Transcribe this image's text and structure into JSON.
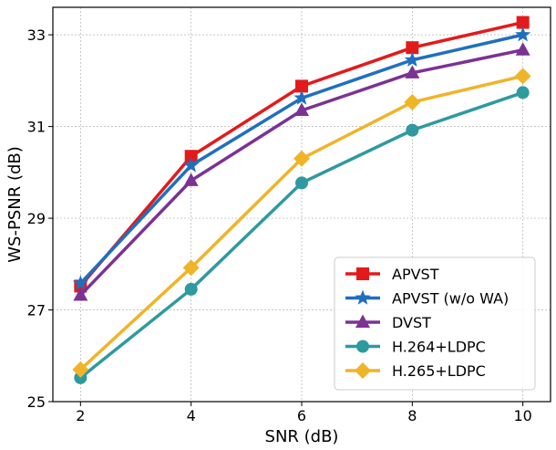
{
  "chart_data": {
    "type": "line",
    "title": "",
    "xlabel": "SNR (dB)",
    "ylabel": "WS-PSNR (dB)",
    "x": [
      2,
      4,
      6,
      8,
      10
    ],
    "xlim": [
      1.5,
      10.5
    ],
    "ylim": [
      25,
      33.6
    ],
    "xticks": [
      2,
      4,
      6,
      8,
      10
    ],
    "yticks": [
      25,
      27,
      29,
      31,
      33
    ],
    "grid": true,
    "legend_position": "bottom-right",
    "series": [
      {
        "name": "APVST",
        "values": [
          27.52,
          30.35,
          31.88,
          32.72,
          33.27
        ],
        "color": "#e31a1c",
        "marker": "square"
      },
      {
        "name": "APVST (w/o WA)",
        "values": [
          27.58,
          30.15,
          31.62,
          32.45,
          33.0
        ],
        "color": "#1f6fbf",
        "marker": "star"
      },
      {
        "name": "DVST",
        "values": [
          27.32,
          29.82,
          31.35,
          32.17,
          32.67
        ],
        "color": "#7b3294",
        "marker": "triangle"
      },
      {
        "name": "H.264+LDPC",
        "values": [
          25.52,
          27.45,
          29.77,
          30.92,
          31.74
        ],
        "color": "#2e9aa0",
        "marker": "circle"
      },
      {
        "name": "H.265+LDPC",
        "values": [
          25.7,
          27.92,
          30.3,
          31.53,
          32.1
        ],
        "color": "#f0b429",
        "marker": "diamond"
      }
    ]
  }
}
